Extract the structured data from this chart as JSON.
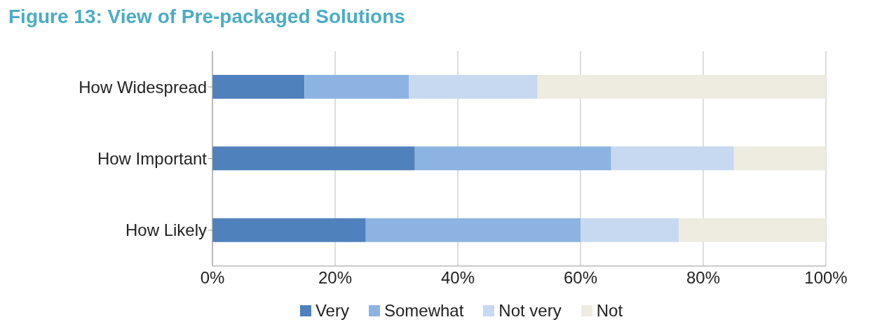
{
  "chart_data": {
    "type": "bar",
    "orientation": "horizontal",
    "stacked": true,
    "title": "Figure 13: View of Pre-packaged Solutions",
    "categories": [
      "How Widespread",
      "How Important",
      "How Likely"
    ],
    "series": [
      {
        "name": "Very",
        "color": "#4f81bd",
        "values": [
          15,
          33,
          25
        ]
      },
      {
        "name": "Somewhat",
        "color": "#8db3e2",
        "values": [
          17,
          32,
          35
        ]
      },
      {
        "name": "Not very",
        "color": "#c6d9f1",
        "values": [
          21,
          20,
          16
        ]
      },
      {
        "name": "Not",
        "color": "#eeece1",
        "values": [
          47,
          15,
          24
        ]
      }
    ],
    "xlim": [
      0,
      100
    ],
    "xticks": [
      {
        "value": 0,
        "label": "0%"
      },
      {
        "value": 20,
        "label": "20%"
      },
      {
        "value": 40,
        "label": "40%"
      },
      {
        "value": 60,
        "label": "60%"
      },
      {
        "value": 80,
        "label": "80%"
      },
      {
        "value": 100,
        "label": "100%"
      }
    ],
    "grid": "x",
    "legend": "bottom"
  }
}
